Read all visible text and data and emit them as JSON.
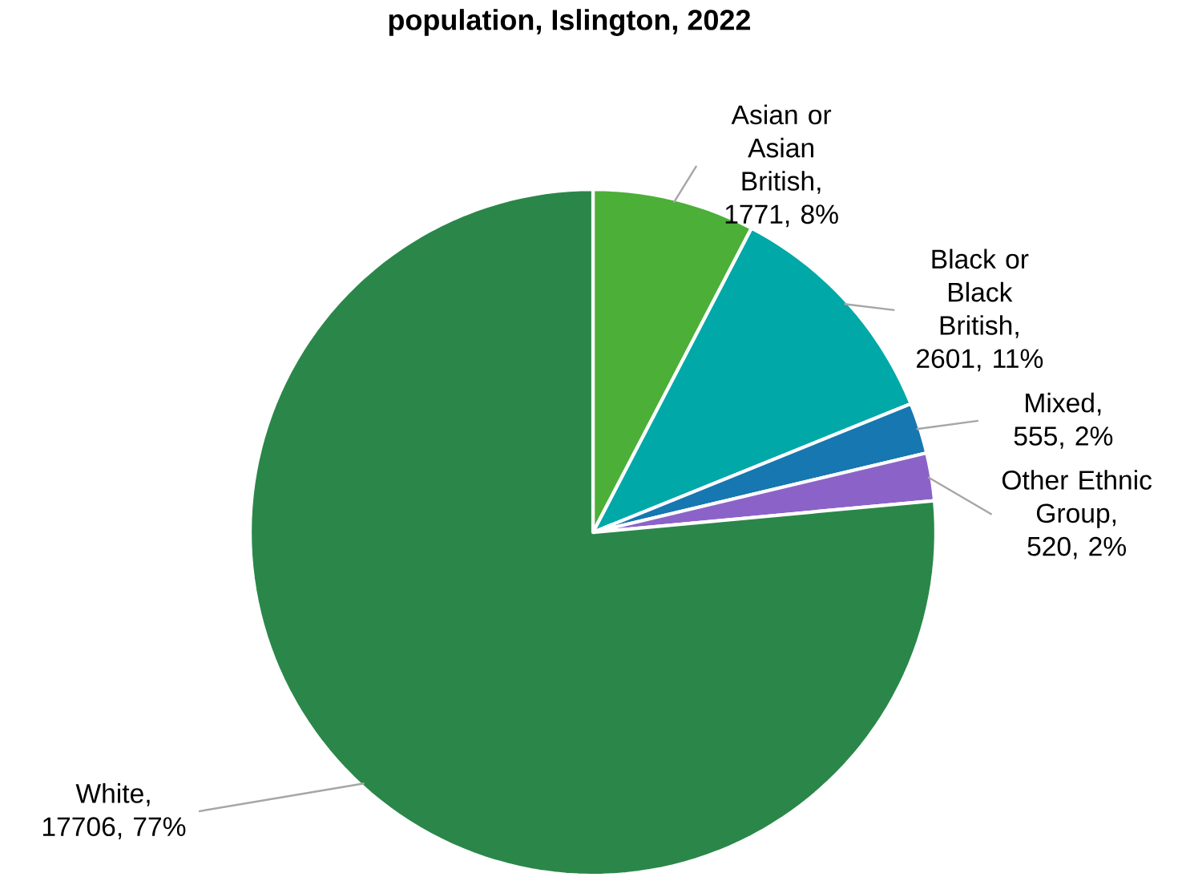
{
  "chart_data": {
    "type": "pie",
    "title": "population, Islington, 2022",
    "categories": [
      "Asian or Asian British",
      "Black or Black British",
      "Mixed",
      "Other Ethnic Group",
      "White"
    ],
    "values": [
      1771,
      2601,
      555,
      520,
      17706
    ],
    "colors": [
      "#4caf38",
      "#00a8a8",
      "#1677b1",
      "#8b63c8",
      "#2a8749"
    ],
    "value_labels": [
      ", 1771, 8%",
      ", 2601, 11%",
      ", 555, 2%",
      ", 520, 2%",
      ", 17706, 77%"
    ]
  }
}
